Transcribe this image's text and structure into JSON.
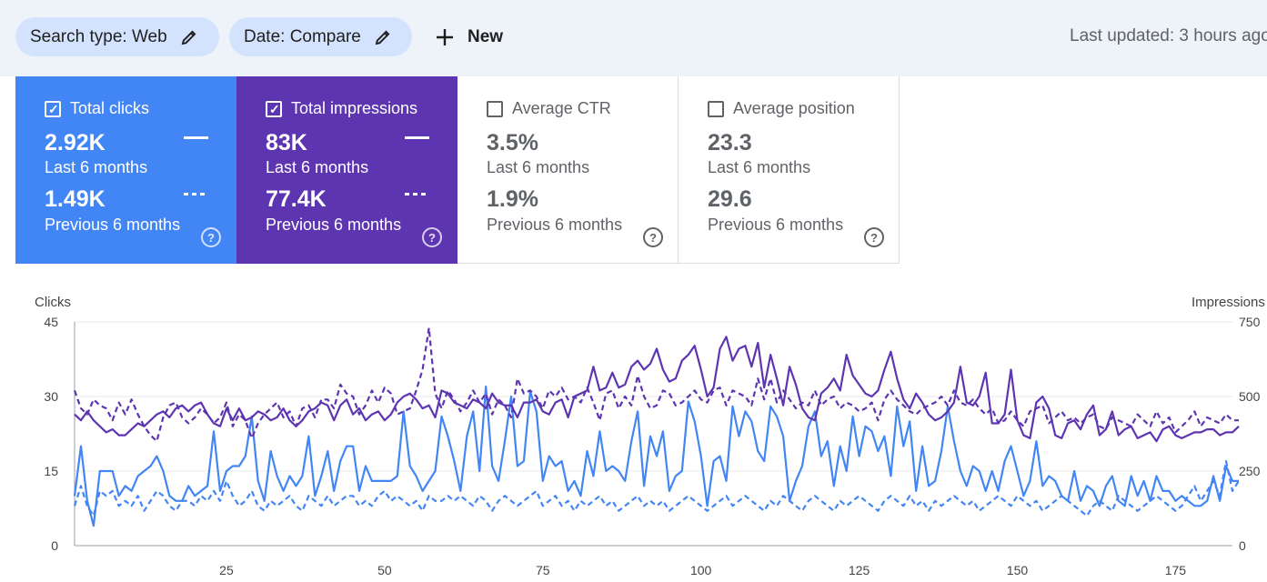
{
  "filters": {
    "search_type": "Search type: Web",
    "date": "Date: Compare",
    "new_label": "New",
    "last_updated": "Last updated: 3 hours ago"
  },
  "metrics": [
    {
      "title": "Total clicks",
      "current": "2.92K",
      "current_label": "Last 6 months",
      "previous": "1.49K",
      "previous_label": "Previous 6 months",
      "selected": true,
      "color": "#4285f4"
    },
    {
      "title": "Total impressions",
      "current": "83K",
      "current_label": "Last 6 months",
      "previous": "77.4K",
      "previous_label": "Previous 6 months",
      "selected": true,
      "color": "#5e35b1"
    },
    {
      "title": "Average CTR",
      "current": "3.5%",
      "current_label": "Last 6 months",
      "previous": "1.9%",
      "previous_label": "Previous 6 months",
      "selected": false
    },
    {
      "title": "Average position",
      "current": "23.3",
      "current_label": "Last 6 months",
      "previous": "29.6",
      "previous_label": "Previous 6 months",
      "selected": false
    }
  ],
  "chart_data": {
    "type": "line",
    "ylabel": "Clicks",
    "y2label": "Impressions",
    "ylim": [
      0,
      45
    ],
    "y2lim": [
      0,
      750
    ],
    "yticks": [
      "0",
      "15",
      "30",
      "45"
    ],
    "y2ticks": [
      "0",
      "250",
      "500",
      "750"
    ],
    "xlim": [
      1,
      184
    ],
    "xticks": [
      25,
      50,
      75,
      100,
      125,
      150,
      175
    ],
    "grid": true,
    "series": [
      {
        "axis": "left",
        "style": "solid",
        "color": "#4285f4",
        "values": [
          10,
          20,
          9,
          4,
          15,
          15,
          15,
          10,
          12,
          11,
          14,
          15,
          16,
          18,
          15,
          10,
          9,
          9,
          12,
          10,
          11,
          12,
          23,
          11,
          15,
          16,
          16,
          18,
          26,
          13,
          9,
          19,
          14,
          11,
          14,
          12,
          14,
          22,
          10,
          14,
          19,
          11,
          17,
          20,
          20,
          11,
          16,
          13,
          13,
          13,
          13,
          14,
          27,
          16,
          14,
          11,
          13,
          15,
          26,
          22,
          17,
          11,
          22,
          27,
          15,
          32,
          16,
          13,
          21,
          30,
          16,
          17,
          31,
          27,
          13,
          18,
          16,
          17,
          11,
          13,
          10,
          19,
          14,
          23,
          15,
          16,
          15,
          13,
          21,
          27,
          12,
          22,
          18,
          23,
          11,
          14,
          15,
          29,
          25,
          18,
          8,
          17,
          18,
          13,
          28,
          22,
          27,
          25,
          19,
          17,
          28,
          26,
          22,
          9,
          13,
          16,
          24,
          27,
          18,
          21,
          12,
          20,
          15,
          26,
          18,
          24,
          23,
          19,
          22,
          14,
          28,
          20,
          25,
          11,
          20,
          12,
          13,
          19,
          28,
          21,
          15,
          12,
          16,
          15,
          11,
          15,
          11,
          17,
          20,
          15,
          10,
          13,
          21,
          12,
          14,
          13,
          10,
          9,
          15,
          9,
          12,
          11,
          8,
          12,
          14,
          9,
          8,
          14,
          10,
          13,
          9,
          14,
          11,
          11,
          9,
          10,
          9,
          8,
          8,
          9,
          14,
          9,
          16,
          13,
          13
        ]
      },
      {
        "axis": "left",
        "style": "dashed",
        "color": "#4285f4",
        "values": [
          8,
          12,
          8,
          6,
          11,
          10,
          11,
          8,
          9,
          8,
          10,
          7,
          9,
          11,
          10,
          8,
          7,
          9,
          9,
          8,
          10,
          9,
          11,
          9,
          13,
          10,
          8,
          9,
          11,
          8,
          7,
          9,
          8,
          9,
          10,
          8,
          7,
          10,
          9,
          8,
          10,
          8,
          9,
          10,
          10,
          8,
          9,
          8,
          10,
          11,
          9,
          10,
          9,
          8,
          9,
          7,
          10,
          9,
          9,
          10,
          9,
          10,
          9,
          8,
          10,
          9,
          7,
          9,
          10,
          9,
          8,
          9,
          10,
          11,
          8,
          9,
          10,
          8,
          9,
          7,
          9,
          8,
          9,
          10,
          8,
          9,
          7,
          8,
          9,
          10,
          8,
          9,
          8,
          9,
          7,
          8,
          9,
          10,
          9,
          8,
          7,
          8,
          9,
          10,
          8,
          9,
          10,
          9,
          8,
          7,
          9,
          8,
          10,
          9,
          8,
          7,
          9,
          10,
          9,
          8,
          7,
          9,
          8,
          9,
          10,
          9,
          8,
          7,
          9,
          10,
          9,
          8,
          10,
          8,
          9,
          7,
          9,
          8,
          9,
          10,
          9,
          8,
          9,
          7,
          8,
          9,
          10,
          9,
          8,
          10,
          9,
          8,
          9,
          7,
          8,
          9,
          10,
          9,
          8,
          7,
          6,
          8,
          9,
          8,
          7,
          10,
          9,
          8,
          7,
          8,
          9,
          10,
          9,
          8,
          7,
          8,
          10,
          12,
          9,
          11,
          13,
          10,
          17,
          11,
          13
        ]
      },
      {
        "axis": "right",
        "style": "solid",
        "color": "#5e35b1",
        "values": [
          440,
          420,
          450,
          420,
          400,
          380,
          390,
          370,
          370,
          390,
          410,
          400,
          420,
          440,
          450,
          430,
          460,
          470,
          450,
          470,
          480,
          440,
          410,
          400,
          460,
          420,
          460,
          420,
          430,
          450,
          440,
          420,
          430,
          460,
          420,
          400,
          420,
          450,
          460,
          480,
          470,
          420,
          470,
          490,
          440,
          460,
          420,
          440,
          450,
          420,
          440,
          480,
          500,
          510,
          490,
          460,
          470,
          430,
          520,
          510,
          480,
          470,
          460,
          490,
          480,
          460,
          510,
          480,
          470,
          470,
          430,
          480,
          480,
          490,
          450,
          440,
          480,
          490,
          430,
          500,
          510,
          520,
          600,
          520,
          530,
          580,
          530,
          540,
          600,
          620,
          590,
          610,
          660,
          590,
          550,
          560,
          620,
          640,
          670,
          590,
          500,
          530,
          660,
          700,
          620,
          660,
          670,
          600,
          680,
          530,
          640,
          560,
          470,
          600,
          540,
          460,
          430,
          420,
          510,
          530,
          560,
          520,
          640,
          570,
          540,
          510,
          500,
          520,
          590,
          650,
          560,
          490,
          460,
          510,
          480,
          440,
          420,
          430,
          450,
          480,
          600,
          480,
          470,
          500,
          580,
          410,
          410,
          440,
          590,
          420,
          370,
          360,
          480,
          500,
          460,
          370,
          360,
          410,
          420,
          390,
          440,
          470,
          370,
          390,
          450,
          370,
          390,
          400,
          360,
          370,
          380,
          350,
          390,
          400,
          370,
          360,
          370,
          380,
          380,
          390,
          390,
          370,
          380,
          380,
          400
        ]
      },
      {
        "axis": "right",
        "style": "dashed",
        "color": "#5e35b1",
        "values": [
          520,
          460,
          440,
          490,
          470,
          460,
          420,
          480,
          440,
          490,
          440,
          400,
          370,
          350,
          430,
          470,
          480,
          430,
          410,
          430,
          460,
          440,
          410,
          430,
          480,
          400,
          440,
          420,
          360,
          410,
          440,
          460,
          480,
          430,
          450,
          400,
          460,
          470,
          430,
          490,
          490,
          460,
          540,
          510,
          500,
          440,
          470,
          520,
          480,
          530,
          510,
          440,
          450,
          460,
          520,
          590,
          730,
          510,
          460,
          520,
          490,
          450,
          480,
          520,
          480,
          510,
          440,
          490,
          470,
          430,
          560,
          510,
          520,
          500,
          460,
          520,
          500,
          530,
          490,
          500,
          480,
          530,
          480,
          420,
          510,
          520,
          460,
          500,
          470,
          570,
          500,
          460,
          470,
          520,
          510,
          470,
          480,
          500,
          520,
          490,
          480,
          520,
          530,
          470,
          520,
          510,
          500,
          470,
          560,
          490,
          560,
          480,
          520,
          490,
          460,
          480,
          470,
          520,
          470,
          490,
          500,
          460,
          480,
          470,
          450,
          460,
          480,
          420,
          490,
          520,
          490,
          470,
          450,
          440,
          460,
          470,
          480,
          500,
          470,
          520,
          480,
          470,
          490,
          460,
          440,
          460,
          410,
          420,
          450,
          420,
          400,
          450,
          460,
          470,
          410,
          430,
          450,
          420,
          430,
          410,
          430,
          440,
          400,
          390,
          430,
          420,
          410,
          400,
          440,
          420,
          400,
          450,
          410,
          430,
          380,
          400,
          420,
          450,
          400,
          430,
          420,
          410,
          440,
          420,
          420
        ]
      }
    ]
  }
}
